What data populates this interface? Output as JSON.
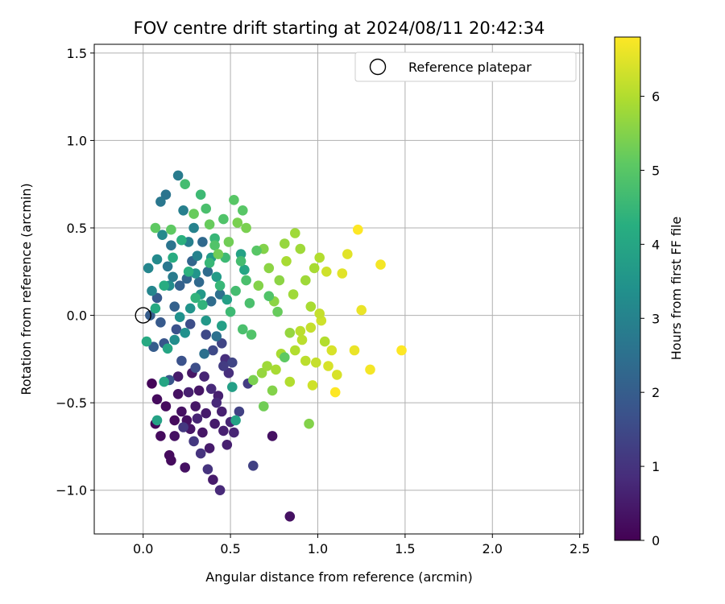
{
  "chart_data": {
    "type": "scatter",
    "title": "FOV centre drift starting at 2024/08/11 20:42:34",
    "xlabel": "Angular distance from reference (arcmin)",
    "ylabel": "Rotation from reference (arcmin)",
    "xlim": [
      -0.28,
      2.52
    ],
    "ylim": [
      -1.25,
      1.55
    ],
    "xticks": [
      0.0,
      0.5,
      1.0,
      1.5,
      2.0,
      2.5
    ],
    "xtick_labels": [
      "0.0",
      "0.5",
      "1.0",
      "1.5",
      "2.0",
      "2.5"
    ],
    "yticks": [
      -1.0,
      -0.5,
      0.0,
      0.5,
      1.0,
      1.5
    ],
    "ytick_labels": [
      "−1.0",
      "−0.5",
      "0.0",
      "0.5",
      "1.0",
      "1.5"
    ],
    "grid": true,
    "legend": {
      "position": "top-right",
      "entries": [
        "Reference platepar"
      ]
    },
    "reference_point": {
      "x": 0.0,
      "y": 0.0
    },
    "colorbar": {
      "label": "Hours from first FF file",
      "range": [
        0,
        6.8
      ],
      "ticks": [
        0,
        1,
        2,
        3,
        4,
        5,
        6
      ],
      "tick_labels": [
        "0",
        "1",
        "2",
        "3",
        "4",
        "5",
        "6"
      ],
      "colormap": "viridis"
    },
    "points": [
      [
        0.05,
        -0.39,
        0.1
      ],
      [
        0.07,
        -0.62,
        0.1
      ],
      [
        0.08,
        -0.48,
        0.2
      ],
      [
        0.1,
        -0.69,
        0.2
      ],
      [
        0.13,
        -0.52,
        0.2
      ],
      [
        0.15,
        -0.8,
        0.2
      ],
      [
        0.16,
        -0.83,
        0.2
      ],
      [
        0.18,
        -0.6,
        0.2
      ],
      [
        0.18,
        -0.69,
        0.3
      ],
      [
        0.2,
        -0.45,
        0.3
      ],
      [
        0.22,
        -0.55,
        0.3
      ],
      [
        0.24,
        -0.87,
        0.3
      ],
      [
        0.25,
        -0.6,
        0.3
      ],
      [
        0.27,
        -0.65,
        0.4
      ],
      [
        0.28,
        -0.33,
        0.4
      ],
      [
        0.3,
        -0.52,
        0.4
      ],
      [
        0.32,
        -0.43,
        0.4
      ],
      [
        0.34,
        -0.67,
        0.4
      ],
      [
        0.36,
        -0.56,
        0.5
      ],
      [
        0.38,
        -0.76,
        0.5
      ],
      [
        0.4,
        -0.94,
        0.5
      ],
      [
        0.41,
        -0.62,
        0.5
      ],
      [
        0.43,
        -0.46,
        0.6
      ],
      [
        0.45,
        -0.55,
        0.6
      ],
      [
        0.46,
        -0.66,
        0.6
      ],
      [
        0.48,
        -0.74,
        0.6
      ],
      [
        0.5,
        -0.61,
        0.7
      ],
      [
        0.52,
        -0.67,
        0.7
      ],
      [
        0.74,
        -0.69,
        0.3
      ],
      [
        0.84,
        -1.15,
        0.3
      ],
      [
        0.2,
        -0.35,
        0.5
      ],
      [
        0.26,
        -0.44,
        0.6
      ],
      [
        0.31,
        -0.59,
        0.7
      ],
      [
        0.35,
        -0.35,
        0.7
      ],
      [
        0.39,
        -0.42,
        0.8
      ],
      [
        0.42,
        -0.5,
        0.8
      ],
      [
        0.44,
        -1.0,
        0.8
      ],
      [
        0.47,
        -0.25,
        0.9
      ],
      [
        0.49,
        -0.33,
        0.9
      ],
      [
        0.37,
        -0.88,
        1.0
      ],
      [
        0.33,
        -0.79,
        1.0
      ],
      [
        0.29,
        -0.72,
        1.1
      ],
      [
        0.23,
        -0.64,
        1.1
      ],
      [
        0.6,
        -0.39,
        1.2
      ],
      [
        0.63,
        -0.86,
        1.3
      ],
      [
        0.55,
        -0.55,
        1.3
      ],
      [
        0.51,
        -0.27,
        1.4
      ],
      [
        0.45,
        -0.16,
        1.4
      ],
      [
        0.4,
        -0.2,
        1.5
      ],
      [
        0.36,
        -0.11,
        1.5
      ],
      [
        0.3,
        -0.3,
        1.6
      ],
      [
        0.27,
        -0.05,
        1.6
      ],
      [
        0.22,
        -0.26,
        1.7
      ],
      [
        0.19,
        -0.08,
        1.7
      ],
      [
        0.15,
        -0.37,
        1.8
      ],
      [
        0.12,
        -0.16,
        1.8
      ],
      [
        0.1,
        -0.04,
        1.9
      ],
      [
        0.08,
        0.1,
        1.9
      ],
      [
        0.06,
        -0.18,
        2.0
      ],
      [
        0.04,
        0.0,
        2.0
      ],
      [
        0.18,
        0.05,
        2.1
      ],
      [
        0.21,
        0.17,
        2.1
      ],
      [
        0.25,
        0.21,
        2.2
      ],
      [
        0.28,
        0.31,
        2.2
      ],
      [
        0.32,
        0.19,
        2.3
      ],
      [
        0.34,
        0.42,
        2.3
      ],
      [
        0.37,
        0.25,
        2.4
      ],
      [
        0.39,
        0.08,
        2.4
      ],
      [
        0.42,
        -0.12,
        2.5
      ],
      [
        0.44,
        0.12,
        2.5
      ],
      [
        0.16,
        0.4,
        2.6
      ],
      [
        0.13,
        0.69,
        2.6
      ],
      [
        0.1,
        0.65,
        2.7
      ],
      [
        0.14,
        0.28,
        2.7
      ],
      [
        0.17,
        0.22,
        2.8
      ],
      [
        0.2,
        0.8,
        2.8
      ],
      [
        0.23,
        0.6,
        2.9
      ],
      [
        0.26,
        0.42,
        2.9
      ],
      [
        0.29,
        0.5,
        3.0
      ],
      [
        0.31,
        0.34,
        3.0
      ],
      [
        0.03,
        0.27,
        3.1
      ],
      [
        0.05,
        0.14,
        3.1
      ],
      [
        0.08,
        0.32,
        3.2
      ],
      [
        0.11,
        0.46,
        3.2
      ],
      [
        0.15,
        0.17,
        3.3
      ],
      [
        0.18,
        -0.14,
        3.3
      ],
      [
        0.21,
        -0.01,
        3.4
      ],
      [
        0.24,
        -0.1,
        3.4
      ],
      [
        0.27,
        0.04,
        3.5
      ],
      [
        0.3,
        0.24,
        3.5
      ],
      [
        0.33,
        0.12,
        3.6
      ],
      [
        0.36,
        -0.03,
        3.6
      ],
      [
        0.39,
        0.33,
        3.7
      ],
      [
        0.42,
        0.22,
        3.7
      ],
      [
        0.45,
        -0.06,
        3.8
      ],
      [
        0.48,
        0.09,
        3.8
      ],
      [
        0.51,
        -0.41,
        3.8
      ],
      [
        0.53,
        -0.6,
        3.9
      ],
      [
        0.56,
        0.35,
        3.9
      ],
      [
        0.58,
        0.26,
        4.0
      ],
      [
        0.08,
        -0.6,
        3.9
      ],
      [
        0.12,
        -0.38,
        4.0
      ],
      [
        0.14,
        -0.19,
        4.0
      ],
      [
        0.02,
        -0.15,
        4.1
      ],
      [
        0.07,
        0.04,
        4.1
      ],
      [
        0.12,
        0.17,
        4.2
      ],
      [
        0.17,
        0.33,
        4.2
      ],
      [
        0.22,
        0.43,
        4.3
      ],
      [
        0.26,
        0.25,
        4.3
      ],
      [
        0.3,
        0.1,
        4.4
      ],
      [
        0.34,
        0.06,
        4.4
      ],
      [
        0.38,
        0.3,
        4.5
      ],
      [
        0.41,
        0.44,
        4.5
      ],
      [
        0.44,
        0.17,
        4.5
      ],
      [
        0.47,
        0.33,
        4.6
      ],
      [
        0.5,
        0.02,
        4.6
      ],
      [
        0.53,
        0.14,
        4.7
      ],
      [
        0.56,
        0.31,
        4.7
      ],
      [
        0.59,
        0.2,
        4.8
      ],
      [
        0.61,
        0.07,
        4.8
      ],
      [
        0.33,
        0.69,
        4.6
      ],
      [
        0.24,
        0.75,
        4.7
      ],
      [
        0.36,
        0.61,
        4.8
      ],
      [
        0.41,
        0.4,
        4.9
      ],
      [
        0.46,
        0.55,
        4.9
      ],
      [
        0.52,
        0.66,
        5.0
      ],
      [
        0.57,
        0.6,
        5.0
      ],
      [
        0.07,
        0.5,
        5.1
      ],
      [
        0.16,
        0.49,
        5.1
      ],
      [
        0.29,
        0.58,
        5.2
      ],
      [
        0.38,
        0.52,
        5.2
      ],
      [
        0.43,
        0.35,
        5.3
      ],
      [
        0.49,
        0.42,
        5.3
      ],
      [
        0.54,
        0.53,
        5.4
      ],
      [
        0.59,
        0.5,
        5.4
      ],
      [
        0.63,
        -0.37,
        5.4
      ],
      [
        0.66,
        0.17,
        5.5
      ],
      [
        0.69,
        0.38,
        5.5
      ],
      [
        0.72,
        0.27,
        5.6
      ],
      [
        0.75,
        0.08,
        5.6
      ],
      [
        0.78,
        0.2,
        5.6
      ],
      [
        0.81,
        0.41,
        5.7
      ],
      [
        0.84,
        -0.1,
        5.7
      ],
      [
        0.87,
        0.47,
        5.8
      ],
      [
        0.9,
        0.38,
        5.8
      ],
      [
        0.93,
        0.2,
        5.8
      ],
      [
        0.96,
        0.05,
        5.9
      ],
      [
        0.98,
        0.27,
        5.9
      ],
      [
        1.01,
        0.33,
        6.0
      ],
      [
        1.04,
        -0.15,
        6.0
      ],
      [
        0.68,
        -0.33,
        5.7
      ],
      [
        0.71,
        -0.29,
        5.8
      ],
      [
        0.76,
        -0.31,
        5.9
      ],
      [
        0.79,
        -0.22,
        5.9
      ],
      [
        0.84,
        -0.38,
        6.0
      ],
      [
        0.87,
        -0.2,
        6.0
      ],
      [
        0.9,
        -0.09,
        6.1
      ],
      [
        0.93,
        -0.26,
        6.1
      ],
      [
        0.96,
        -0.07,
        6.2
      ],
      [
        0.99,
        -0.27,
        6.2
      ],
      [
        1.02,
        -0.03,
        6.3
      ],
      [
        1.05,
        0.25,
        6.3
      ],
      [
        1.08,
        -0.2,
        6.4
      ],
      [
        1.11,
        -0.34,
        6.4
      ],
      [
        1.14,
        0.24,
        6.5
      ],
      [
        1.17,
        0.35,
        6.5
      ],
      [
        1.21,
        -0.2,
        6.6
      ],
      [
        1.25,
        0.03,
        6.6
      ],
      [
        1.3,
        -0.31,
        6.7
      ],
      [
        1.36,
        0.29,
        6.7
      ],
      [
        1.48,
        -0.2,
        6.8
      ],
      [
        1.23,
        0.49,
        6.8
      ],
      [
        1.1,
        -0.44,
        6.8
      ],
      [
        0.95,
        -0.62,
        5.5
      ],
      [
        0.69,
        -0.52,
        5.3
      ],
      [
        0.77,
        0.02,
        5.2
      ],
      [
        0.81,
        -0.24,
        5.1
      ],
      [
        0.65,
        0.37,
        5.0
      ],
      [
        0.72,
        0.11,
        4.9
      ],
      [
        0.86,
        0.12,
        5.8
      ],
      [
        0.91,
        -0.14,
        6.1
      ],
      [
        0.97,
        -0.4,
        6.3
      ],
      [
        1.01,
        0.01,
        6.2
      ],
      [
        1.06,
        -0.29,
        6.4
      ],
      [
        0.82,
        0.31,
        5.9
      ],
      [
        0.74,
        -0.43,
        5.5
      ],
      [
        0.62,
        -0.11,
        4.9
      ],
      [
        0.57,
        -0.08,
        4.8
      ],
      [
        0.35,
        -0.22,
        2.5
      ],
      [
        0.46,
        -0.29,
        1.2
      ]
    ]
  }
}
